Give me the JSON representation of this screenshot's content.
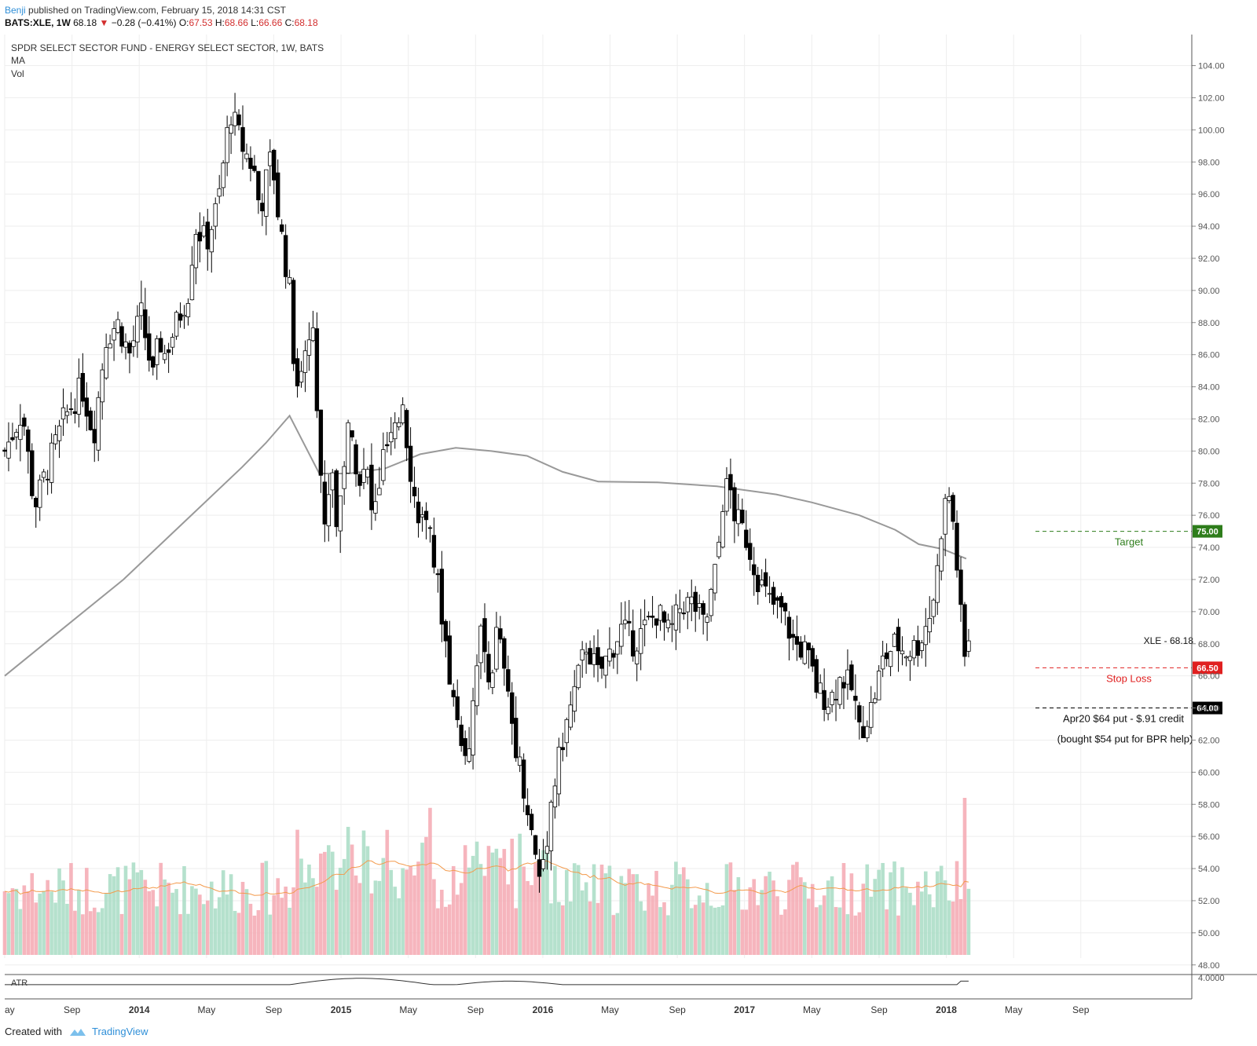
{
  "header": {
    "author": "Benji",
    "published": "published on TradingView.com, February 15, 2018 14:31 CST",
    "symbol": "BATS:XLE, 1W",
    "last": "68.18",
    "change": "−0.28 (−0.41%)",
    "o_label": "O:",
    "o_val": "67.53",
    "h_label": "H:",
    "h_val": "68.66",
    "l_label": "L:",
    "l_val": "66.66",
    "c_label": "C:",
    "c_val": "68.18"
  },
  "legend": {
    "title": "SPDR SELECT SECTOR FUND - ENERGY SELECT SECTOR, 1W, BATS",
    "ma": "MA",
    "vol": "Vol",
    "atr": "ATR"
  },
  "footer": {
    "created": "Created with",
    "brand": "TradingView"
  },
  "colors": {
    "target": "#2e7d1b",
    "stop": "#e02020",
    "support": "#000000",
    "up_vol": "#a8dcc4",
    "down_vol": "#f5a8b2",
    "ma": "#999999",
    "vol_ma": "#f39a4c"
  },
  "chart_data": {
    "type": "candlestick",
    "title": "SPDR SELECT SECTOR FUND - ENERGY SELECT SECTOR, 1W, BATS",
    "interval": "1W",
    "ylim": [
      47,
      104
    ],
    "price_axis_ticks": [
      48,
      50,
      52,
      54,
      56,
      58,
      60,
      62,
      64,
      66,
      68,
      70,
      72,
      74,
      76,
      78,
      80,
      82,
      84,
      86,
      88,
      90,
      92,
      94,
      96,
      98,
      100,
      102,
      104
    ],
    "x_ticks": [
      {
        "label": "ay",
        "t": 0
      },
      {
        "label": "Sep",
        "t": 0.0567
      },
      {
        "label": "2014",
        "t": 0.1133
      },
      {
        "label": "May",
        "t": 0.17
      },
      {
        "label": "Sep",
        "t": 0.2266
      },
      {
        "label": "2015",
        "t": 0.2833
      },
      {
        "label": "May",
        "t": 0.34
      },
      {
        "label": "Sep",
        "t": 0.3966
      },
      {
        "label": "2016",
        "t": 0.4533
      },
      {
        "label": "May",
        "t": 0.5099
      },
      {
        "label": "Sep",
        "t": 0.5666
      },
      {
        "label": "2017",
        "t": 0.6232
      },
      {
        "label": "May",
        "t": 0.6799
      },
      {
        "label": "Sep",
        "t": 0.7366
      },
      {
        "label": "2018",
        "t": 0.7932
      },
      {
        "label": "May",
        "t": 0.8499
      },
      {
        "label": "Sep",
        "t": 0.9065
      }
    ],
    "price_path": [
      [
        0,
        80
      ],
      [
        0.015,
        82.5
      ],
      [
        0.025,
        76.5
      ],
      [
        0.05,
        82
      ],
      [
        0.065,
        84
      ],
      [
        0.075,
        81
      ],
      [
        0.085,
        87
      ],
      [
        0.095,
        88
      ],
      [
        0.105,
        86
      ],
      [
        0.115,
        88.5
      ],
      [
        0.125,
        84.5
      ],
      [
        0.13,
        87
      ],
      [
        0.135,
        86
      ],
      [
        0.145,
        88
      ],
      [
        0.155,
        90
      ],
      [
        0.16,
        94
      ],
      [
        0.17,
        93
      ],
      [
        0.18,
        95.5
      ],
      [
        0.19,
        101.2
      ],
      [
        0.2,
        99
      ],
      [
        0.21,
        97.5
      ],
      [
        0.215,
        95
      ],
      [
        0.225,
        98.5
      ],
      [
        0.23,
        95
      ],
      [
        0.24,
        90
      ],
      [
        0.245,
        84
      ],
      [
        0.255,
        86.5
      ],
      [
        0.26,
        88.5
      ],
      [
        0.265,
        80
      ],
      [
        0.27,
        74.5
      ],
      [
        0.275,
        80
      ],
      [
        0.28,
        75
      ],
      [
        0.285,
        79
      ],
      [
        0.29,
        81.5
      ],
      [
        0.3,
        78
      ],
      [
        0.305,
        79
      ],
      [
        0.31,
        75.5
      ],
      [
        0.32,
        80
      ],
      [
        0.33,
        81
      ],
      [
        0.335,
        83.5
      ],
      [
        0.34,
        80
      ],
      [
        0.345,
        77
      ],
      [
        0.36,
        74
      ],
      [
        0.37,
        69
      ],
      [
        0.375,
        66
      ],
      [
        0.38,
        63.5
      ],
      [
        0.39,
        61
      ],
      [
        0.4,
        69
      ],
      [
        0.405,
        67
      ],
      [
        0.41,
        66
      ],
      [
        0.415,
        69
      ],
      [
        0.425,
        64
      ],
      [
        0.43,
        62
      ],
      [
        0.44,
        58
      ],
      [
        0.445,
        55.5
      ],
      [
        0.45,
        53.5
      ],
      [
        0.455,
        55
      ],
      [
        0.46,
        58
      ],
      [
        0.47,
        62
      ],
      [
        0.48,
        65
      ],
      [
        0.49,
        68
      ],
      [
        0.5,
        66
      ],
      [
        0.51,
        67.5
      ],
      [
        0.52,
        69
      ],
      [
        0.53,
        68
      ],
      [
        0.54,
        69
      ],
      [
        0.55,
        70
      ],
      [
        0.56,
        68.5
      ],
      [
        0.57,
        70.5
      ],
      [
        0.58,
        70.5
      ],
      [
        0.59,
        69
      ],
      [
        0.6,
        73
      ],
      [
        0.605,
        77
      ],
      [
        0.61,
        78
      ],
      [
        0.615,
        76
      ],
      [
        0.625,
        74.5
      ],
      [
        0.635,
        72
      ],
      [
        0.645,
        70.5
      ],
      [
        0.655,
        70
      ],
      [
        0.665,
        68
      ],
      [
        0.675,
        67.5
      ],
      [
        0.685,
        65
      ],
      [
        0.695,
        64.5
      ],
      [
        0.705,
        66
      ],
      [
        0.715,
        65
      ],
      [
        0.72,
        62.5
      ],
      [
        0.73,
        64
      ],
      [
        0.74,
        67
      ],
      [
        0.75,
        68
      ],
      [
        0.76,
        67.5
      ],
      [
        0.77,
        68
      ],
      [
        0.78,
        70
      ],
      [
        0.785,
        72
      ],
      [
        0.79,
        76
      ],
      [
        0.795,
        77.5
      ],
      [
        0.8,
        75
      ],
      [
        0.805,
        70
      ],
      [
        0.81,
        66
      ],
      [
        0.812,
        68.18
      ]
    ],
    "ma_line": [
      [
        0,
        66
      ],
      [
        0.05,
        69
      ],
      [
        0.1,
        72
      ],
      [
        0.15,
        75.5
      ],
      [
        0.2,
        79
      ],
      [
        0.22,
        80.5
      ],
      [
        0.24,
        82.2
      ],
      [
        0.265,
        78.6
      ],
      [
        0.29,
        78.6
      ],
      [
        0.32,
        78.9
      ],
      [
        0.35,
        79.8
      ],
      [
        0.38,
        80.2
      ],
      [
        0.41,
        80
      ],
      [
        0.44,
        79.7
      ],
      [
        0.47,
        78.7
      ],
      [
        0.5,
        78.1
      ],
      [
        0.55,
        78.05
      ],
      [
        0.6,
        77.8
      ],
      [
        0.65,
        77.3
      ],
      [
        0.68,
        76.8
      ],
      [
        0.72,
        76
      ],
      [
        0.75,
        75.1
      ],
      [
        0.77,
        74.2
      ],
      [
        0.79,
        73.9
      ],
      [
        0.81,
        73.3
      ]
    ],
    "annotations": [
      {
        "name": "target",
        "label": "Target",
        "price": 75.0,
        "tag": "75.00"
      },
      {
        "name": "stop-loss",
        "label": "Stop Loss",
        "price": 66.5,
        "tag": "66.50"
      },
      {
        "name": "support",
        "label": "Apr20 $64 put - $.91 credit",
        "note": "(bought $54 put for BPR help)",
        "price": 64.0,
        "tag": "64.00"
      }
    ],
    "last_price": {
      "symbol": "XLE",
      "value": 68.18
    },
    "atr_tick": "4.0000"
  }
}
